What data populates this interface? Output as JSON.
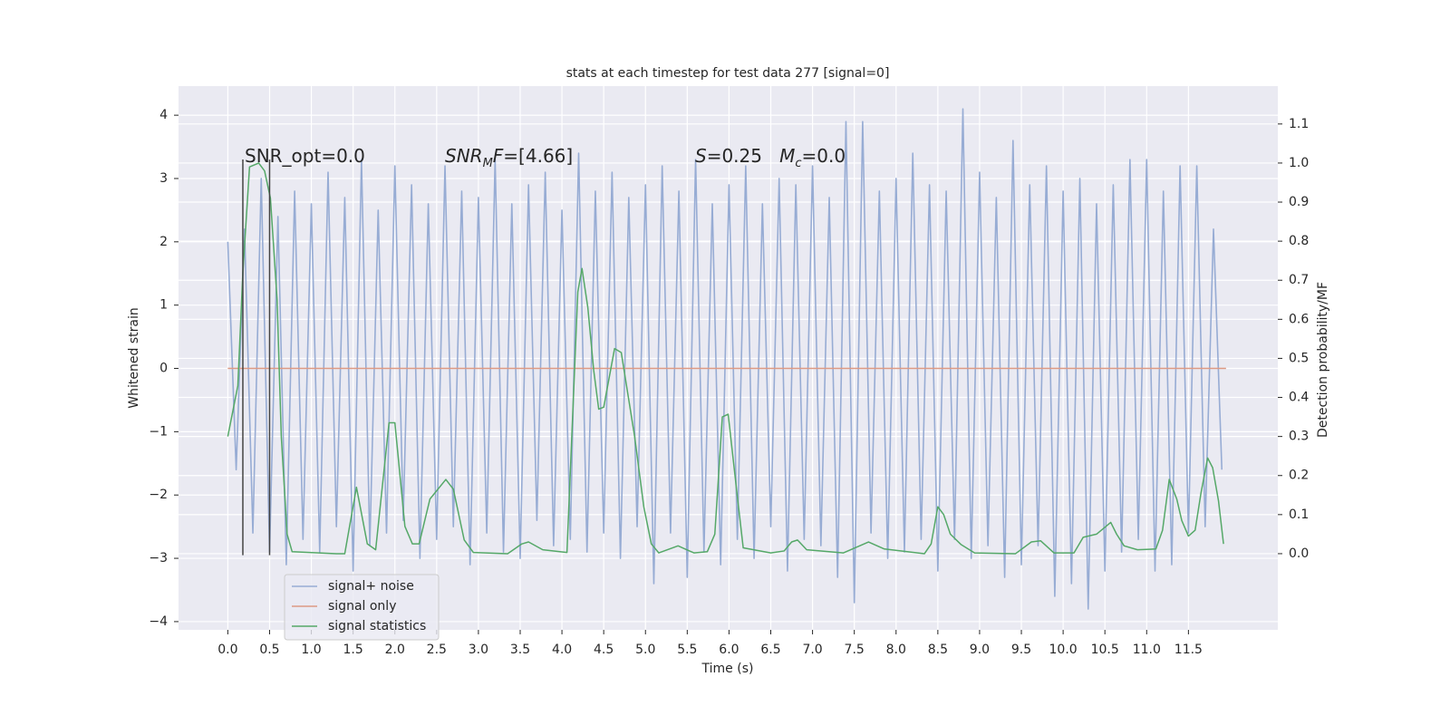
{
  "chart_data": {
    "type": "line",
    "title": "stats at each timestep for test data 277 [signal=0]",
    "xlabel": "Time (s)",
    "ylabel": "Whitened strain",
    "y2label": "Detection probability/MF",
    "xlim": [
      -0.59,
      12.57
    ],
    "ylim": [
      -4.13,
      4.46
    ],
    "y2lim": [
      -0.195,
      1.197
    ],
    "xticks": [
      {
        "value": 0,
        "label": "0.0"
      },
      {
        "value": 0.5,
        "label": "0.5"
      },
      {
        "value": 1,
        "label": "1.0"
      },
      {
        "value": 1.5,
        "label": "1.5"
      },
      {
        "value": 2,
        "label": "2.0"
      },
      {
        "value": 2.5,
        "label": "2.5"
      },
      {
        "value": 3,
        "label": "3.0"
      },
      {
        "value": 3.5,
        "label": "3.5"
      },
      {
        "value": 4,
        "label": "4.0"
      },
      {
        "value": 4.5,
        "label": "4.5"
      },
      {
        "value": 5,
        "label": "5.0"
      },
      {
        "value": 5.5,
        "label": "5.5"
      },
      {
        "value": 6,
        "label": "6.0"
      },
      {
        "value": 6.5,
        "label": "6.5"
      },
      {
        "value": 7,
        "label": "7.0"
      },
      {
        "value": 7.5,
        "label": "7.5"
      },
      {
        "value": 8,
        "label": "8.0"
      },
      {
        "value": 8.5,
        "label": "8.5"
      },
      {
        "value": 9,
        "label": "9.0"
      },
      {
        "value": 9.5,
        "label": "9.5"
      },
      {
        "value": 10,
        "label": "10.0"
      },
      {
        "value": 10.5,
        "label": "10.5"
      },
      {
        "value": 11,
        "label": "11.0"
      },
      {
        "value": 11.5,
        "label": "11.5"
      }
    ],
    "yticks": [
      {
        "value": -4,
        "label": "−4"
      },
      {
        "value": -3,
        "label": "−3"
      },
      {
        "value": -2,
        "label": "−2"
      },
      {
        "value": -1,
        "label": "−1"
      },
      0,
      1,
      2,
      3,
      4
    ],
    "y2ticks": [
      {
        "value": 0,
        "label": "0.0"
      },
      0.1,
      0.2,
      0.3,
      0.4,
      0.5,
      0.6,
      0.7,
      0.8,
      0.9,
      {
        "value": 1,
        "label": "1.0"
      },
      1.1
    ],
    "grid": true,
    "legend": "lower left",
    "series": [
      {
        "name": "signal+ noise",
        "color": "#97acd4",
        "x": [
          0,
          0.1,
          0.2,
          0.3,
          0.4,
          0.5,
          0.6,
          0.7,
          0.8,
          0.9,
          1,
          1.1,
          1.2,
          1.3,
          1.4,
          1.5,
          1.6,
          1.7,
          1.8,
          1.9,
          2,
          2.1,
          2.2,
          2.3,
          2.4,
          2.5,
          2.6,
          2.7,
          2.8,
          2.9,
          3,
          3.1,
          3.2,
          3.3,
          3.4,
          3.5,
          3.6,
          3.7,
          3.8,
          3.9,
          4,
          4.1,
          4.2,
          4.3,
          4.4,
          4.5,
          4.6,
          4.7,
          4.8,
          4.9,
          5,
          5.1,
          5.2,
          5.3,
          5.4,
          5.5,
          5.6,
          5.7,
          5.8,
          5.9,
          6,
          6.1,
          6.2,
          6.3,
          6.4,
          6.5,
          6.6,
          6.7,
          6.8,
          6.9,
          7,
          7.1,
          7.2,
          7.3,
          7.4,
          7.5,
          7.6,
          7.7,
          7.8,
          7.9,
          8,
          8.1,
          8.2,
          8.3,
          8.4,
          8.5,
          8.6,
          8.7,
          8.8,
          8.9,
          9,
          9.1,
          9.2,
          9.3,
          9.4,
          9.5,
          9.6,
          9.7,
          9.8,
          9.9,
          10,
          10.1,
          10.2,
          10.3,
          10.4,
          10.5,
          10.6,
          10.7,
          10.8,
          10.9,
          11,
          11.1,
          11.2,
          11.3,
          11.4,
          11.5,
          11.6,
          11.7,
          11.8,
          11.9
        ],
        "values": [
          2.0,
          -1.6,
          2.2,
          -2.6,
          3.0,
          -2.9,
          2.4,
          -3.1,
          2.8,
          -2.7,
          2.6,
          -2.9,
          3.1,
          -2.5,
          2.7,
          -3.2,
          3.3,
          -2.8,
          2.5,
          -2.6,
          3.2,
          -2.4,
          2.9,
          -3.0,
          2.6,
          -2.7,
          3.2,
          -2.5,
          2.8,
          -3.1,
          2.7,
          -2.6,
          3.3,
          -2.9,
          2.6,
          -3.0,
          2.9,
          -2.4,
          3.1,
          -2.8,
          2.5,
          -2.7,
          3.4,
          -2.9,
          2.8,
          -2.6,
          3.1,
          -3.0,
          2.7,
          -2.5,
          2.9,
          -3.4,
          3.2,
          -2.6,
          2.8,
          -3.3,
          3.3,
          -2.9,
          2.6,
          -3.1,
          2.9,
          -2.7,
          3.2,
          -3.0,
          2.6,
          -2.5,
          3.0,
          -3.2,
          2.9,
          -2.7,
          3.2,
          -2.8,
          2.7,
          -3.3,
          3.9,
          -3.7,
          3.9,
          -2.6,
          2.8,
          -3.0,
          3.0,
          -2.9,
          3.4,
          -2.7,
          2.9,
          -3.2,
          2.8,
          -2.7,
          4.1,
          -3.0,
          3.1,
          -2.8,
          2.7,
          -3.3,
          3.6,
          -3.1,
          2.9,
          -2.8,
          3.2,
          -3.6,
          2.8,
          -3.4,
          3.0,
          -3.8,
          2.6,
          -3.2,
          2.9,
          -2.9,
          3.3,
          -2.7,
          3.3,
          -3.2,
          2.8,
          -3.1,
          3.2,
          -2.6,
          3.2,
          -2.5,
          2.2,
          -1.6
        ]
      },
      {
        "name": "signal only",
        "color": "#dd9a84",
        "x": [
          0,
          11.95
        ],
        "values": [
          0,
          0
        ]
      },
      {
        "name": "signal statistics",
        "color": "#55a868",
        "axis": "y2",
        "x": [
          0,
          0.12,
          0.18,
          0.26,
          0.37,
          0.44,
          0.51,
          0.59,
          0.64,
          0.71,
          0.77,
          1.3,
          1.4,
          1.54,
          1.67,
          1.77,
          1.93,
          2.0,
          2.12,
          2.21,
          2.29,
          2.42,
          2.61,
          2.7,
          2.83,
          2.94,
          3.35,
          3.52,
          3.6,
          3.77,
          4.06,
          4.19,
          4.24,
          4.31,
          4.38,
          4.44,
          4.5,
          4.63,
          4.71,
          4.87,
          4.98,
          5.07,
          5.16,
          5.39,
          5.58,
          5.74,
          5.83,
          5.92,
          5.99,
          6.09,
          6.17,
          6.5,
          6.66,
          6.75,
          6.82,
          6.93,
          7.37,
          7.67,
          7.86,
          8.34,
          8.42,
          8.5,
          8.57,
          8.65,
          8.78,
          8.94,
          9.43,
          9.62,
          9.73,
          9.89,
          10.13,
          10.24,
          10.4,
          10.57,
          10.64,
          10.73,
          10.89,
          11.11,
          11.19,
          11.27,
          11.36,
          11.42,
          11.5,
          11.58,
          11.65,
          11.73,
          11.79,
          11.86,
          11.92
        ],
        "values": [
          0.3,
          0.43,
          0.72,
          0.99,
          1.0,
          0.98,
          0.91,
          0.65,
          0.3,
          0.05,
          0.005,
          0,
          0,
          0.17,
          0.025,
          0.01,
          0.335,
          0.335,
          0.07,
          0.025,
          0.025,
          0.14,
          0.19,
          0.165,
          0.035,
          0.003,
          0,
          0.025,
          0.03,
          0.01,
          0.003,
          0.67,
          0.73,
          0.63,
          0.47,
          0.37,
          0.375,
          0.525,
          0.515,
          0.3,
          0.12,
          0.025,
          0.002,
          0.02,
          0.002,
          0.005,
          0.05,
          0.35,
          0.357,
          0.165,
          0.015,
          0.002,
          0.007,
          0.03,
          0.035,
          0.01,
          0.002,
          0.03,
          0.012,
          0,
          0.025,
          0.12,
          0.1,
          0.05,
          0.023,
          0.002,
          0,
          0.03,
          0.033,
          0.002,
          0.002,
          0.042,
          0.05,
          0.08,
          0.05,
          0.02,
          0.01,
          0.012,
          0.06,
          0.19,
          0.14,
          0.085,
          0.045,
          0.06,
          0.155,
          0.245,
          0.22,
          0.135,
          0.025
        ]
      }
    ],
    "vlines": {
      "x": [
        0.18,
        0.5
      ],
      "ymin": -2.95,
      "ymax": 3.3,
      "color": "#444444"
    },
    "annotations": [
      [
        {
          "text": "SNR_opt=0.0"
        }
      ],
      [
        {
          "text": "SNR",
          "style": "italic"
        },
        {
          "text": "M",
          "style": "italic-sub"
        },
        {
          "text": "F",
          "style": "italic"
        },
        {
          "text": "=[4.66]"
        }
      ],
      [
        {
          "text": "S",
          "style": "italic"
        },
        {
          "text": "=0.25   "
        },
        {
          "text": "M",
          "style": "italic"
        },
        {
          "text": "c",
          "style": "italic-sub"
        },
        {
          "text": "=0.0"
        }
      ]
    ]
  }
}
